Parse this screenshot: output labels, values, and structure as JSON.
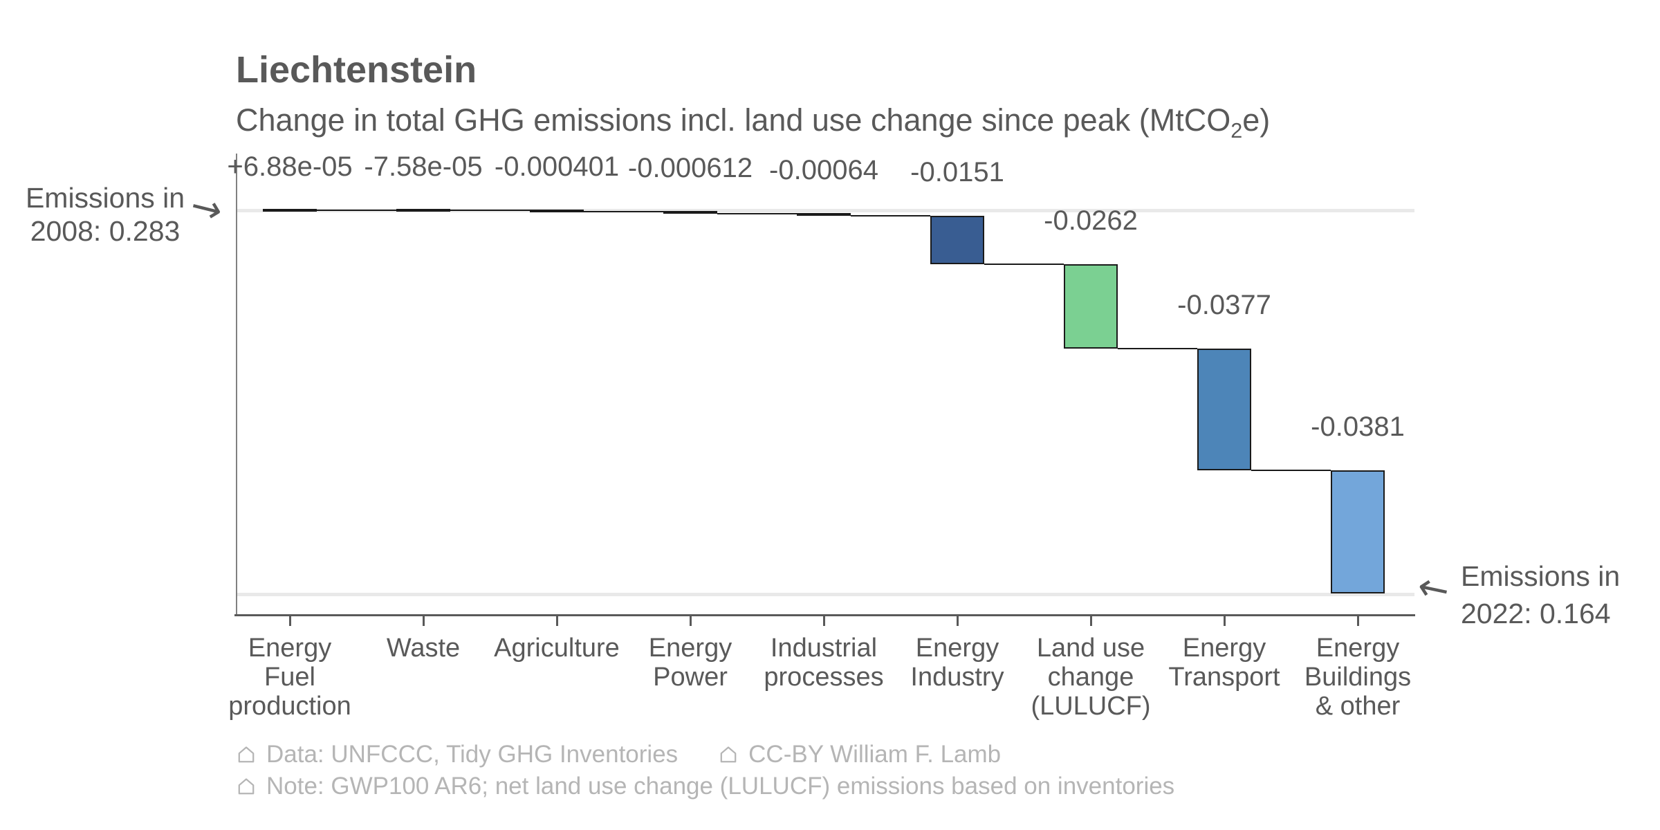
{
  "header": {
    "title": "Liechtenstein",
    "subtitle_prefix": "Change in total GHG emissions incl. land use change since peak (MtCO",
    "subtitle_sub": "2",
    "subtitle_suffix": "e)"
  },
  "chart_data": {
    "type": "bar",
    "variant": "waterfall",
    "title": "Liechtenstein",
    "subtitle": "Change in total GHG emissions incl. land use change since peak (MtCO2e)",
    "start": {
      "year": "2008",
      "value": 0.283
    },
    "end": {
      "year": "2022",
      "value": 0.164
    },
    "categories": [
      [
        "Energy",
        "Fuel",
        "production"
      ],
      [
        "Waste"
      ],
      [
        "Agriculture"
      ],
      [
        "Energy",
        "Power"
      ],
      [
        "Industrial",
        "processes"
      ],
      [
        "Energy",
        "Industry"
      ],
      [
        "Land use",
        "change",
        "(LULUCF)"
      ],
      [
        "Energy",
        "Transport"
      ],
      [
        "Energy",
        "Buildings",
        "& other"
      ]
    ],
    "values": [
      6.88e-05,
      -7.58e-05,
      -0.000401,
      -0.000612,
      -0.00064,
      -0.0151,
      -0.0262,
      -0.0377,
      -0.0381
    ],
    "value_labels": [
      "+6.88e-05",
      "-7.58e-05",
      "-0.000401",
      "-0.000612",
      "-0.00064",
      "-0.0151",
      "-0.0262",
      "-0.0377",
      "-0.0381"
    ],
    "bar_colors": [
      "#333333",
      "#333333",
      "#333333",
      "#2b9b9e",
      "#d2a63c",
      "#395d92",
      "#7bd092",
      "#4d85b8",
      "#73a6da"
    ],
    "grid_levels": [
      0.283,
      0.164
    ],
    "ylim": [
      0.164,
      0.283
    ],
    "grid": true,
    "legend": "none",
    "colors": {
      "bar_edge": "#1a1a1a",
      "gridline": "#e9e9e9",
      "y_spine": "#808080",
      "x_spine": "#595959",
      "text": "#595959",
      "footer_text": "#b5b5b5"
    }
  },
  "annotations": {
    "start": {
      "line1": "Emissions in",
      "line2": "2008: 0.283",
      "arrow": "→"
    },
    "end": {
      "line1": "Emissions in",
      "line2": "2022: 0.164",
      "arrow": "←"
    }
  },
  "footer": {
    "item1": "Data: UNFCCC, Tidy GHG Inventories",
    "item2": "CC-BY William F. Lamb",
    "note": "Note: GWP100 AR6; net land use change (LULUCF) emissions based on inventories"
  }
}
